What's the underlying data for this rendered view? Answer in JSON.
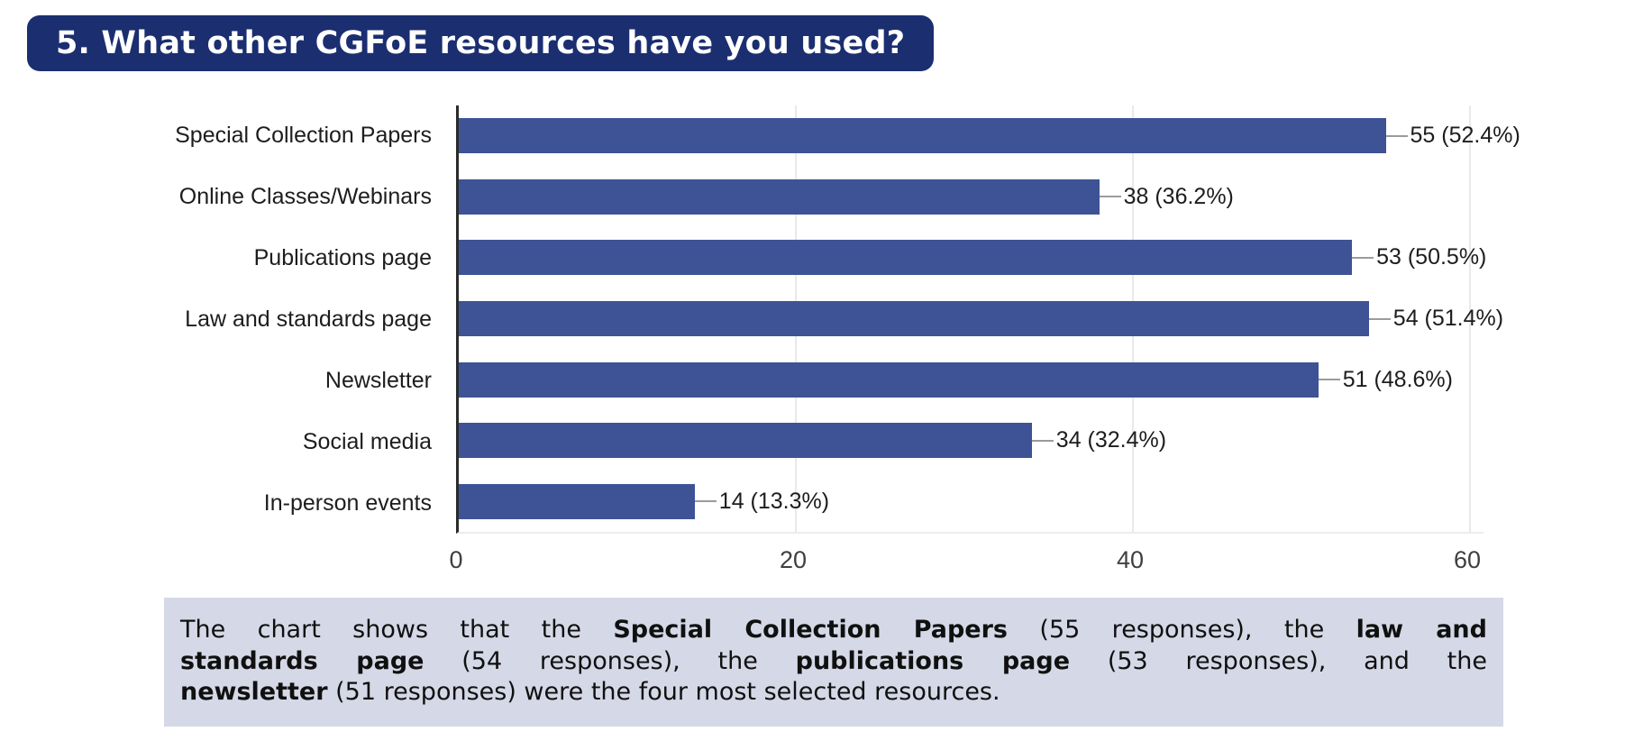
{
  "banner": {
    "title": "5. What other CGFoE resources have you used?"
  },
  "chart_data": {
    "type": "bar",
    "orientation": "horizontal",
    "categories": [
      "Special Collection Papers",
      "Online Classes/Webinars",
      "Publications page",
      "Law and standards page",
      "Newsletter",
      "Social media",
      "In-person events"
    ],
    "values": [
      55,
      38,
      53,
      54,
      51,
      34,
      14
    ],
    "value_labels": [
      "55 (52.4%)",
      "38 (36.2%)",
      "53 (50.5%)",
      "54 (51.4%)",
      "51 (48.6%)",
      "34 (32.4%)",
      "14 (13.3%)"
    ],
    "xticks": [
      0,
      20,
      40,
      60
    ],
    "xlim": [
      0,
      60
    ],
    "grid": true,
    "legend": false,
    "bar_color": "#3D5396"
  },
  "caption": {
    "lines": [
      [
        {
          "t": "The chart shows that the ",
          "b": false
        },
        {
          "t": "Special Collection Papers",
          "b": true
        },
        {
          "t": " (55 responses), the ",
          "b": false
        },
        {
          "t": "law and",
          "b": true
        }
      ],
      [
        {
          "t": "standards page",
          "b": true
        },
        {
          "t": " (54 responses), the ",
          "b": false
        },
        {
          "t": "publications page",
          "b": true
        },
        {
          "t": " (53 responses), and the ",
          "b": false
        }
      ],
      [
        {
          "t": "newsletter",
          "b": true
        },
        {
          "t": " (51 responses) were the four most selected resources.",
          "b": false
        }
      ]
    ]
  },
  "colors": {
    "banner_bg": "#1B2E70",
    "bar": "#3D5396",
    "caption_bg": "#D5D8E6",
    "axis": "#2B2B2B",
    "gridline": "#E9E9E9",
    "leader": "#9B9B9B",
    "label_text": "#1D1D1D",
    "tick_text": "#3F3F3F"
  }
}
